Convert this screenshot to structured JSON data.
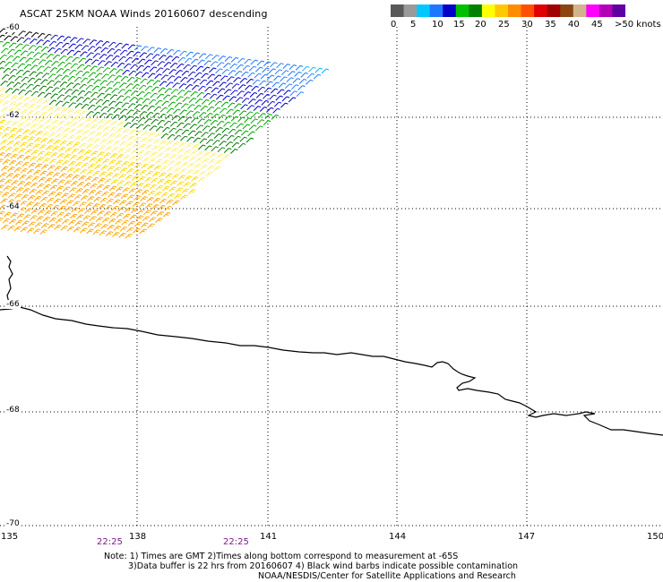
{
  "title": "ASCAT 25KM NOAA Winds 20160607 descending",
  "legend": {
    "labels": [
      "0",
      "5",
      "10",
      "15",
      "20",
      "25",
      "30",
      "35",
      "40",
      "45",
      ">50 knots"
    ],
    "colors": [
      "#595959",
      "#9a9a9a",
      "#00c8ff",
      "#1e78ff",
      "#0000c8",
      "#00c000",
      "#008000",
      "#ffff00",
      "#ffc800",
      "#ff8c00",
      "#ff5000",
      "#e00000",
      "#a00000",
      "#8b4513",
      "#d2b48c",
      "#ff00ff",
      "#b400b4",
      "#6000a0"
    ]
  },
  "map": {
    "lon_labels": [
      "135",
      "138",
      "141",
      "144",
      "147",
      "150"
    ],
    "lat_labels": [
      "-60",
      "-62",
      "-64",
      "-66",
      "-68",
      "-70"
    ],
    "time_labels": [
      "22:25",
      "22:25"
    ],
    "coastline_color": "#000000",
    "grid_style": "dotted"
  },
  "notes": [
    "Note: 1) Times are GMT 2)Times along bottom correspond to measurement at -65S",
    "3)Data buffer is 22 hrs from 20160607 4) Black wind barbs indicate possible contamination",
    "NOAA/NESDIS/Center for Satellite Applications and Research"
  ]
}
